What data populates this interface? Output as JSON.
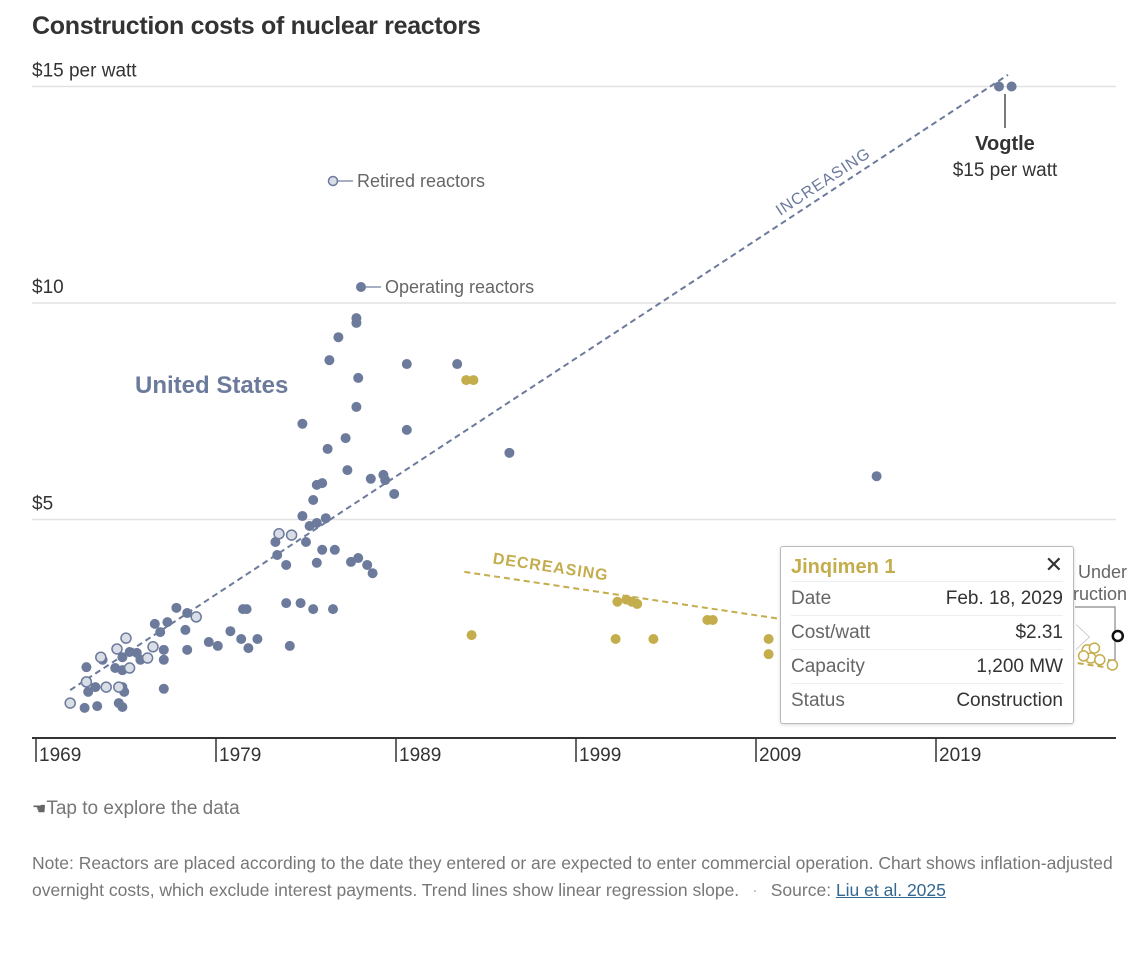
{
  "colors": {
    "us": "#6c7a9c",
    "us_retired_fill": "#d9dde6",
    "china": "#c4ad4c",
    "highlight": "#111111",
    "grid": "#e2e2e2"
  },
  "chart_data": {
    "type": "scatter",
    "title": "Construction costs of nuclear reactors",
    "ylabel_top": "$15 per watt",
    "y_tick_labels": [
      "$5",
      "$10",
      "$15 per watt"
    ],
    "y_ticks": [
      5,
      10,
      15
    ],
    "ylim": [
      0,
      15
    ],
    "x_ticks": [
      1969,
      1979,
      1989,
      1999,
      2009,
      2019
    ],
    "x_tick_labels": [
      "1969",
      "1979",
      "1989",
      "1999",
      "2009",
      "2019"
    ],
    "xlim": [
      1969,
      2029
    ],
    "grid": "horizontal",
    "series": [
      {
        "name": "Operating reactors",
        "group": "United States",
        "style": "filled",
        "color": "#6c7a9c",
        "points": [
          [
            1986.8,
            9.65
          ],
          [
            1986.8,
            9.54
          ],
          [
            1985.8,
            9.21
          ],
          [
            1985.3,
            8.68
          ],
          [
            1986.9,
            8.27
          ],
          [
            1989.6,
            8.59
          ],
          [
            1986.8,
            7.6
          ],
          [
            1983.8,
            7.21
          ],
          [
            1989.6,
            7.07
          ],
          [
            1986.2,
            6.88
          ],
          [
            1985.2,
            6.63
          ],
          [
            1986.3,
            6.14
          ],
          [
            1987.6,
            5.94
          ],
          [
            1988.3,
            6.03
          ],
          [
            1988.4,
            5.91
          ],
          [
            1988.9,
            5.59
          ],
          [
            1984.6,
            5.8
          ],
          [
            1984.9,
            5.84
          ],
          [
            1984.4,
            5.45
          ],
          [
            1983.8,
            5.08
          ],
          [
            1984.2,
            4.85
          ],
          [
            1984.6,
            4.92
          ],
          [
            1985.1,
            5.03
          ],
          [
            1982.3,
            4.48
          ],
          [
            1984.0,
            4.48
          ],
          [
            1982.4,
            4.18
          ],
          [
            1982.9,
            3.95
          ],
          [
            1984.9,
            4.3
          ],
          [
            1985.6,
            4.3
          ],
          [
            1984.6,
            4.0
          ],
          [
            1986.5,
            4.02
          ],
          [
            1986.9,
            4.11
          ],
          [
            1987.4,
            3.95
          ],
          [
            1987.7,
            3.76
          ],
          [
            1982.9,
            3.07
          ],
          [
            1983.7,
            3.07
          ],
          [
            1984.4,
            2.93
          ],
          [
            1985.5,
            2.93
          ],
          [
            1980.5,
            2.93
          ],
          [
            1980.7,
            2.93
          ],
          [
            1983.1,
            2.08
          ],
          [
            1979.8,
            2.42
          ],
          [
            1980.4,
            2.24
          ],
          [
            1980.8,
            2.03
          ],
          [
            1981.3,
            2.24
          ],
          [
            1978.6,
            2.17
          ],
          [
            1979.1,
            2.08
          ],
          [
            1976.8,
            2.96
          ],
          [
            1977.4,
            2.84
          ],
          [
            1977.3,
            2.45
          ],
          [
            1977.4,
            1.99
          ],
          [
            1976.1,
            1.99
          ],
          [
            1976.1,
            1.76
          ],
          [
            1976.1,
            1.09
          ],
          [
            1975.6,
            2.59
          ],
          [
            1975.9,
            2.4
          ],
          [
            1976.3,
            2.63
          ],
          [
            1974.6,
            1.92
          ],
          [
            1974.2,
            1.94
          ],
          [
            1974.8,
            1.76
          ],
          [
            1973.8,
            1.82
          ],
          [
            1973.4,
            1.57
          ],
          [
            1973.8,
            1.52
          ],
          [
            1972.7,
            1.76
          ],
          [
            1971.8,
            1.59
          ],
          [
            1971.9,
            1.02
          ],
          [
            1972.3,
            1.13
          ],
          [
            1971.7,
            0.65
          ],
          [
            1972.4,
            0.69
          ],
          [
            1973.6,
            0.76
          ],
          [
            1973.8,
            0.67
          ],
          [
            1973.9,
            1.02
          ],
          [
            1973.8,
            1.13
          ],
          [
            1992.4,
            8.59
          ],
          [
            1995.3,
            6.54
          ],
          [
            2015.7,
            6.0
          ],
          [
            2022.5,
            15.0
          ],
          [
            2023.2,
            15.0
          ]
        ]
      },
      {
        "name": "Retired reactors",
        "group": "United States",
        "style": "hollow",
        "color": "#6c7a9c",
        "points": [
          [
            1970.9,
            0.76
          ],
          [
            1982.5,
            4.67
          ],
          [
            1983.2,
            4.64
          ],
          [
            1977.9,
            2.75
          ],
          [
            1975.5,
            2.06
          ],
          [
            1975.2,
            1.8
          ],
          [
            1974.0,
            2.26
          ],
          [
            1973.5,
            2.01
          ],
          [
            1972.6,
            1.82
          ],
          [
            1972.9,
            1.13
          ],
          [
            1973.6,
            1.13
          ],
          [
            1971.8,
            1.25
          ],
          [
            1974.2,
            1.57
          ]
        ]
      },
      {
        "group": "China",
        "style": "filled",
        "color": "#c4ad4c",
        "points": [
          [
            1992.9,
            8.22
          ],
          [
            1993.3,
            8.22
          ],
          [
            1993.2,
            2.33
          ],
          [
            2001.3,
            3.1
          ],
          [
            2001.8,
            3.15
          ],
          [
            2002.1,
            3.1
          ],
          [
            2002.4,
            3.05
          ],
          [
            2001.2,
            2.24
          ],
          [
            2003.3,
            2.24
          ],
          [
            2006.3,
            2.68
          ],
          [
            2006.6,
            2.68
          ],
          [
            2009.7,
            2.24
          ],
          [
            2009.7,
            1.89
          ]
        ]
      },
      {
        "name": "Under construction",
        "group": "China",
        "style": "hollow",
        "color": "#c4ad4c",
        "points": [
          [
            2027.4,
            1.99
          ],
          [
            2027.8,
            2.03
          ],
          [
            2027.6,
            1.8
          ],
          [
            2028.1,
            1.76
          ],
          [
            2028.8,
            1.64
          ],
          [
            2027.2,
            1.85
          ]
        ]
      }
    ],
    "highlighted_point": [
      2029.1,
      2.31
    ],
    "trend_lines": [
      {
        "label": "INCREASING",
        "color": "#6c7a9c",
        "from": [
          1970.9,
          1.06
        ],
        "to": [
          2023.0,
          15.27
        ]
      },
      {
        "label": "DECREASING",
        "color": "#c4ad4c",
        "from": [
          1992.8,
          3.79
        ],
        "to": [
          2028.7,
          1.57
        ]
      }
    ],
    "annotations": {
      "us_label": "United States",
      "legend_retired": "Retired reactors",
      "legend_operating": "Operating reactors",
      "vogtle_name": "Vogtle",
      "vogtle_value": "$15 per watt",
      "under_construction_line1": "Under",
      "under_construction_line2": "construction"
    }
  },
  "tooltip": {
    "title": "Jinqimen 1",
    "close_icon": "close-x-icon",
    "rows": [
      {
        "label": "Date",
        "value": "Feb. 18, 2029"
      },
      {
        "label": "Cost/watt",
        "value": "$2.31"
      },
      {
        "label": "Capacity",
        "value": "1,200 MW"
      },
      {
        "label": "Status",
        "value": "Construction"
      }
    ]
  },
  "hint": {
    "icon": "tap-hand-icon",
    "text": "Tap to explore the data"
  },
  "footer": {
    "note": "Note: Reactors are placed according to the date they entered or are expected to enter commercial operation. Chart shows inflation-adjusted overnight costs, which exclude interest payments. Trend lines show linear regression slope.",
    "separator": "·",
    "source_label": "Source:",
    "source_link": "Liu et al. 2025"
  }
}
